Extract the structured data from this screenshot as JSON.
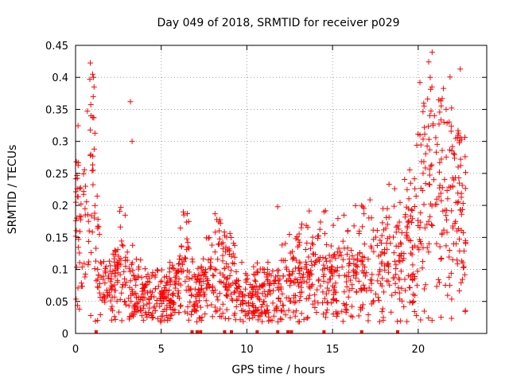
{
  "chart_data": {
    "type": "scatter",
    "title": "Day 049 of 2018, SRMTID for receiver p029",
    "xlabel": "GPS time / hours",
    "ylabel": "SRMTID / TECUs",
    "xlim": [
      0,
      24
    ],
    "ylim": [
      0,
      0.45
    ],
    "xticks": [
      0,
      5,
      10,
      15,
      20
    ],
    "xtick_labels": [
      "0",
      "5",
      "10",
      "15",
      "20"
    ],
    "yticks": [
      0,
      0.05,
      0.1,
      0.15,
      0.2,
      0.25,
      0.3,
      0.35,
      0.4,
      0.45
    ],
    "ytick_labels": [
      "0",
      "0.05",
      "0.1",
      "0.15",
      "0.2",
      "0.25",
      "0.3",
      "0.35",
      "0.4",
      "0.45"
    ],
    "grid": true,
    "marker": "+",
    "color": "#ff0000",
    "series": [
      {
        "name": "SRMTID",
        "x_range": [
          0,
          22.8
        ],
        "profile": [
          [
            0.0,
            0.17
          ],
          [
            0.5,
            0.18
          ],
          [
            0.9,
            0.25
          ],
          [
            1.2,
            0.12
          ],
          [
            1.6,
            0.07
          ],
          [
            2.0,
            0.065
          ],
          [
            2.4,
            0.09
          ],
          [
            2.7,
            0.13
          ],
          [
            3.0,
            0.07
          ],
          [
            3.5,
            0.06
          ],
          [
            4.0,
            0.055
          ],
          [
            5.0,
            0.05
          ],
          [
            6.0,
            0.07
          ],
          [
            6.4,
            0.11
          ],
          [
            7.0,
            0.05
          ],
          [
            8.0,
            0.09
          ],
          [
            8.8,
            0.1
          ],
          [
            9.5,
            0.06
          ],
          [
            10.0,
            0.05
          ],
          [
            11.0,
            0.06
          ],
          [
            12.0,
            0.07
          ],
          [
            13.0,
            0.09
          ],
          [
            14.0,
            0.1
          ],
          [
            15.0,
            0.08
          ],
          [
            16.0,
            0.09
          ],
          [
            17.0,
            0.1
          ],
          [
            18.0,
            0.12
          ],
          [
            19.0,
            0.11
          ],
          [
            20.0,
            0.15
          ],
          [
            20.8,
            0.27
          ],
          [
            21.5,
            0.22
          ],
          [
            22.3,
            0.19
          ],
          [
            22.8,
            0.18
          ]
        ]
      }
    ],
    "outliers": [
      [
        1.0,
        0.405
      ],
      [
        1.05,
        0.4
      ],
      [
        1.08,
        0.385
      ],
      [
        1.03,
        0.37
      ],
      [
        3.2,
        0.362
      ],
      [
        3.3,
        0.3
      ],
      [
        0.9,
        0.34
      ],
      [
        20.1,
        0.392
      ],
      [
        20.7,
        0.4
      ],
      [
        20.8,
        0.385
      ],
      [
        21.2,
        0.365
      ],
      [
        21.5,
        0.33
      ],
      [
        11.8,
        0.198
      ],
      [
        14.5,
        0.19
      ],
      [
        16.7,
        0.2
      ]
    ],
    "zero_markers_x": [
      1.2,
      6.8,
      7.1,
      7.3,
      8.7,
      9.1,
      10.6,
      11.8,
      12.4,
      12.6,
      14.5,
      16.7,
      18.8
    ]
  }
}
